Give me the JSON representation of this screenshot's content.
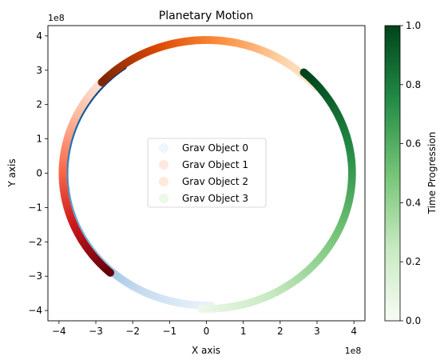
{
  "chart_data": {
    "type": "scatter",
    "title": "Planetary Motion",
    "xlabel": "X axis",
    "ylabel": "Y axis",
    "x_offset_label": "1e8",
    "y_offset_label": "1e8",
    "xlim": [
      -4.3,
      4.3
    ],
    "ylim": [
      -4.3,
      4.3
    ],
    "xticks": [
      -4,
      -3,
      -2,
      -1,
      0,
      1,
      2,
      3,
      4
    ],
    "yticks": [
      -4,
      -3,
      -2,
      -1,
      0,
      1,
      2,
      3,
      4
    ],
    "grid": false,
    "legend_position": "center",
    "series": [
      {
        "name": "Grav Object 0",
        "colormap": "Blues",
        "radius": 3.85,
        "start_angle_deg": -88,
        "end_angle_deg": -234
      },
      {
        "name": "Grav Object 1",
        "colormap": "Reds",
        "radius": 3.9,
        "start_angle_deg": -224,
        "end_angle_deg": -132
      },
      {
        "name": "Grav Object 2",
        "colormap": "Oranges",
        "radius": 3.88,
        "start_angle_deg": 40,
        "end_angle_deg": 137
      },
      {
        "name": "Grav Object 3",
        "colormap": "Greens",
        "radius": 3.95,
        "start_angle_deg": -92,
        "end_angle_deg": 48
      }
    ],
    "colorbar": {
      "label": "Time Progression",
      "range": [
        0.0,
        1.0
      ],
      "ticks": [
        "0.0",
        "0.2",
        "0.4",
        "0.6",
        "0.8",
        "1.0"
      ]
    },
    "legend_colors": [
      "#f0f6fd",
      "#fde9df",
      "#feeadb",
      "#ecf8e8"
    ],
    "colormaps": {
      "Blues": [
        "#f7fbff",
        "#c6dbef",
        "#6baed6",
        "#2171b5",
        "#08306b"
      ],
      "Reds": [
        "#fff5f0",
        "#fcbba1",
        "#fb6a4a",
        "#cb181d",
        "#67000d"
      ],
      "Oranges": [
        "#fff5eb",
        "#fdd0a2",
        "#fd8d3c",
        "#d94801",
        "#7f2704"
      ],
      "Greens": [
        "#f7fcf5",
        "#c7e9c0",
        "#74c476",
        "#238b45",
        "#00441b"
      ]
    }
  }
}
